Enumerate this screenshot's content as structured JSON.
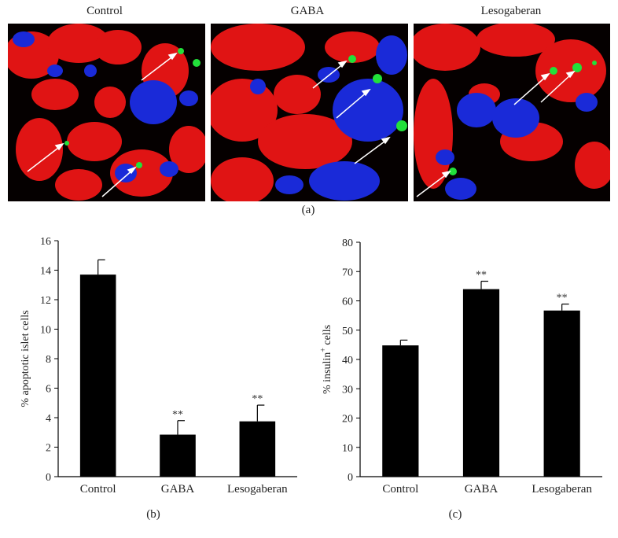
{
  "panel_a": {
    "titles": [
      "Control",
      "GABA",
      "Lesogaberan"
    ],
    "label": "(a)"
  },
  "chart_data": [
    {
      "type": "bar",
      "panel_label": "(b)",
      "categories": [
        "Control",
        "GABA",
        "Lesogaberan"
      ],
      "values": [
        13.7,
        2.85,
        3.75
      ],
      "errors": [
        1.0,
        0.95,
        1.1
      ],
      "annotations": [
        "",
        "**",
        "**"
      ],
      "ylabel": "% apoptotic islet cells",
      "ylim": [
        0,
        16
      ],
      "yticks": [
        0,
        2,
        4,
        6,
        8,
        10,
        12,
        14,
        16
      ],
      "bar_color": "#000000"
    },
    {
      "type": "bar",
      "panel_label": "(c)",
      "categories": [
        "Control",
        "GABA",
        "Lesogaberan"
      ],
      "values": [
        44.8,
        64.0,
        56.7
      ],
      "errors": [
        1.8,
        2.7,
        2.2
      ],
      "annotations": [
        "",
        "**",
        "**"
      ],
      "ylabel_prefix": "% insulin",
      "ylabel_sup": "+",
      "ylabel_suffix": " cells",
      "ylim": [
        0,
        80
      ],
      "yticks": [
        0,
        10,
        20,
        30,
        40,
        50,
        60,
        70,
        80
      ],
      "bar_color": "#000000"
    }
  ]
}
